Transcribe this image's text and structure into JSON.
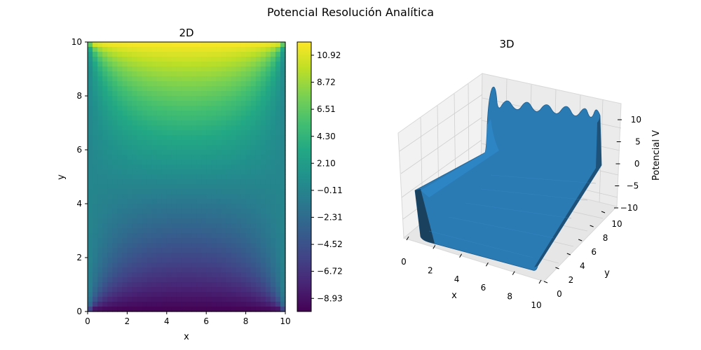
{
  "figure": {
    "suptitle": "Potencial Resolución Analítica"
  },
  "colormap": [
    "#440154",
    "#482475",
    "#414487",
    "#355f8d",
    "#2a788e",
    "#21918c",
    "#22a884",
    "#44bf70",
    "#7ad151",
    "#bddf26",
    "#fde725"
  ],
  "chart_data": [
    {
      "type": "heatmap",
      "title": "2D",
      "xlabel": "x",
      "ylabel": "y",
      "xlim": [
        0,
        10
      ],
      "ylim": [
        0,
        10
      ],
      "xticks": [
        "0",
        "2",
        "4",
        "6",
        "8",
        "10"
      ],
      "yticks": [
        "0",
        "2",
        "4",
        "6",
        "8",
        "10"
      ],
      "vmin": -10,
      "vmax": 12,
      "boundary": {
        "y0": -10,
        "y10": 12,
        "x0": 0,
        "x10": 0
      },
      "colorbar_ticks": [
        "10.92",
        "8.72",
        "6.51",
        "4.30",
        "2.10",
        "−0.11",
        "−2.31",
        "−4.52",
        "−6.72",
        "−8.93"
      ]
    },
    {
      "type": "surface",
      "title": "3D",
      "xlabel": "x",
      "ylabel": "y",
      "zlabel": "Potencial V",
      "xticks": [
        "0",
        "2",
        "4",
        "6",
        "8",
        "10"
      ],
      "yticks": [
        "0",
        "2",
        "4",
        "6",
        "8",
        "10"
      ],
      "zticks": [
        "10",
        "5",
        "0",
        "−5",
        "−10"
      ],
      "color": "#2a7ab4"
    }
  ]
}
